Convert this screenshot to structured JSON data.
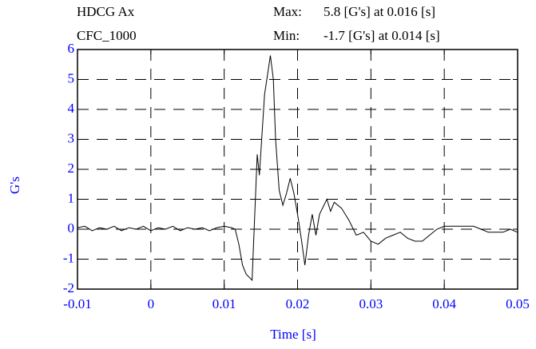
{
  "chart_data": {
    "type": "line",
    "annotations": [
      "HDCG Ax",
      "CFC_1000",
      "Max:",
      "5.8 [G's] at 0.016 [s]",
      "Min:",
      "-1.7 [G's] at 0.014 [s]"
    ],
    "x_label": "Time [s]",
    "y_label": "G's",
    "xlim": [
      -0.01,
      0.05
    ],
    "xticks": [
      -0.01,
      0,
      0.01,
      0.02,
      0.03,
      0.04,
      0.05
    ],
    "ylim": [
      -2,
      6
    ],
    "yticks": [
      -2,
      -1,
      0,
      1,
      2,
      3,
      4,
      5,
      6
    ],
    "grid": true,
    "series": [
      {
        "color": "#000000",
        "x": [
          -0.01,
          -0.009,
          -0.008,
          -0.007,
          -0.006,
          -0.005,
          -0.004,
          -0.003,
          -0.002,
          -0.001,
          0,
          0.001,
          0.002,
          0.003,
          0.004,
          0.005,
          0.006,
          0.007,
          0.008,
          0.009,
          0.01,
          0.011,
          0.0115,
          0.012,
          0.0125,
          0.013,
          0.0138,
          0.014,
          0.0145,
          0.0148,
          0.0155,
          0.0163,
          0.0167,
          0.017,
          0.0175,
          0.018,
          0.0185,
          0.019,
          0.0195,
          0.02,
          0.0205,
          0.021,
          0.0215,
          0.022,
          0.0225,
          0.023,
          0.024,
          0.0245,
          0.025,
          0.026,
          0.027,
          0.028,
          0.029,
          0.03,
          0.031,
          0.032,
          0.033,
          0.034,
          0.035,
          0.036,
          0.037,
          0.038,
          0.039,
          0.04,
          0.041,
          0.042,
          0.043,
          0.044,
          0.045,
          0.046,
          0.047,
          0.048,
          0.049,
          0.05
        ],
        "values": [
          0.05,
          0.1,
          -0.05,
          0.05,
          0.0,
          0.1,
          -0.05,
          0.05,
          0.0,
          0.1,
          -0.05,
          0.05,
          0.0,
          0.1,
          -0.05,
          0.05,
          0.0,
          0.05,
          -0.05,
          0.05,
          0.1,
          0.05,
          0.0,
          -0.5,
          -1.2,
          -1.5,
          -1.7,
          -0.5,
          2.5,
          1.8,
          4.5,
          5.8,
          5.0,
          3.0,
          1.3,
          0.8,
          1.2,
          1.7,
          1.2,
          0.5,
          -0.3,
          -1.2,
          -0.2,
          0.5,
          -0.2,
          0.5,
          1.0,
          0.6,
          0.9,
          0.7,
          0.3,
          -0.2,
          -0.1,
          -0.4,
          -0.5,
          -0.3,
          -0.2,
          -0.1,
          -0.3,
          -0.4,
          -0.4,
          -0.2,
          0.0,
          0.1,
          0.1,
          0.1,
          0.1,
          0.1,
          0.0,
          -0.1,
          -0.1,
          -0.1,
          0.0,
          -0.1
        ]
      }
    ]
  }
}
